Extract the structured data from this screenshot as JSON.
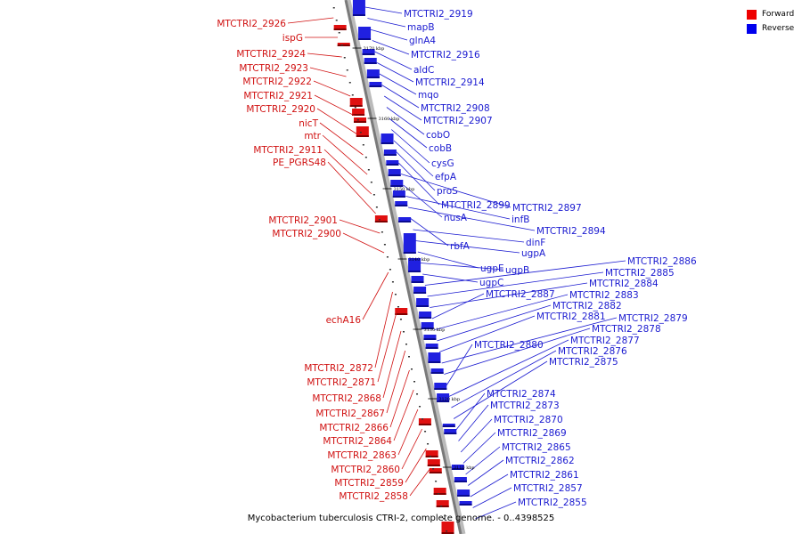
{
  "caption": "Mycobacterium tuberculosis CTRI-2, complete genome. - 0..4398525",
  "legend": [
    {
      "label": "Forward",
      "color": "#ee0000"
    },
    {
      "label": "Reverse",
      "color": "#0000ee"
    }
  ],
  "ticks": [
    "3170 kbp",
    "3160 kbp",
    "3150 kbp",
    "3140 kbp",
    "3130 kbp",
    "3120 kbp",
    "3110 kbp"
  ],
  "forward_labels": [
    "MTCTRI2_2926",
    "ispG",
    "MTCTRI2_2924",
    "MTCTRI2_2923",
    "MTCTRI2_2922",
    "MTCTRI2_2921",
    "MTCTRI2_2920",
    "nicT",
    "mtr",
    "MTCTRI2_2911",
    "PE_PGRS48",
    "MTCTRI2_2901",
    "MTCTRI2_2900",
    "echA16",
    "MTCTRI2_2872",
    "MTCTRI2_2871",
    "MTCTRI2_2868",
    "MTCTRI2_2867",
    "MTCTRI2_2866",
    "MTCTRI2_2864",
    "MTCTRI2_2863",
    "MTCTRI2_2860",
    "MTCTRI2_2859",
    "MTCTRI2_2858"
  ],
  "reverse_labels": [
    "MTCTRI2_2919",
    "mapB",
    "glnA4",
    "MTCTRI2_2916",
    "aldC",
    "MTCTRI2_2914",
    "mqo",
    "MTCTRI2_2908",
    "MTCTRI2_2907",
    "cobO",
    "cobB",
    "cysG",
    "efpA",
    "proS",
    "MTCTRI2_2899",
    "MTCTRI2_2897",
    "nusA",
    "infB",
    "MTCTRI2_2894",
    "rbfA",
    "dinF",
    "ugpA",
    "ugpE",
    "ugpB",
    "ugpC",
    "MTCTRI2_2886",
    "MTCTRI2_2885",
    "MTCTRI2_2884",
    "MTCTRI2_2887",
    "MTCTRI2_2883",
    "MTCTRI2_2882",
    "MTCTRI2_2881",
    "MTCTRI2_2879",
    "MTCTRI2_2878",
    "MTCTRI2_2880",
    "MTCTRI2_2877",
    "MTCTRI2_2876",
    "MTCTRI2_2875",
    "MTCTRI2_2874",
    "MTCTRI2_2873",
    "MTCTRI2_2870",
    "MTCTRI2_2869",
    "MTCTRI2_2865",
    "MTCTRI2_2862",
    "MTCTRI2_2861",
    "MTCTRI2_2857",
    "MTCTRI2_2855"
  ]
}
